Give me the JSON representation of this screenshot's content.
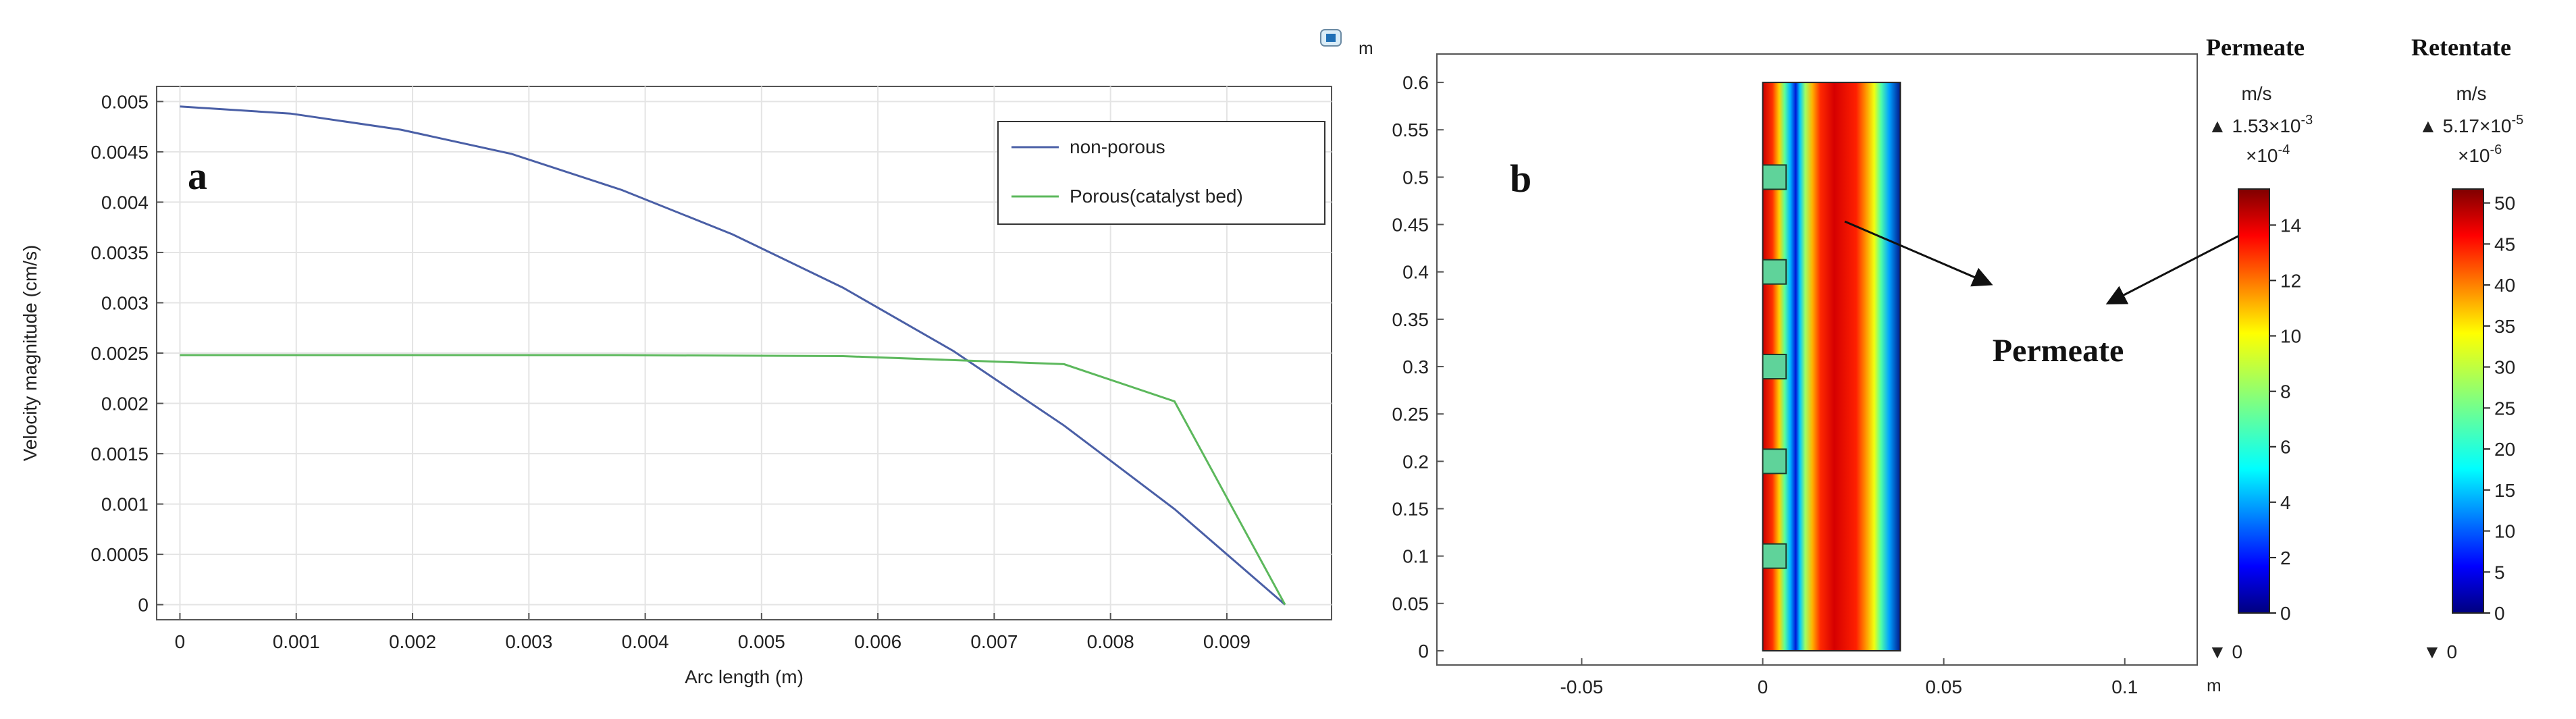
{
  "chart_data": [
    {
      "panel": "a",
      "type": "line",
      "panel_label": "a",
      "title": "",
      "xlabel": "Arc length (m)",
      "ylabel": "Velocity magnitude (cm/s)",
      "xlim": [
        -0.0002,
        0.0099
      ],
      "ylim": [
        -0.00015,
        0.00515
      ],
      "xticks": [
        "0",
        "0.001",
        "0.002",
        "0.003",
        "0.004",
        "0.005",
        "0.006",
        "0.007",
        "0.008",
        "0.009"
      ],
      "xtick_values": [
        0,
        0.001,
        0.002,
        0.003,
        0.004,
        0.005,
        0.006,
        0.007,
        0.008,
        0.009
      ],
      "yticks": [
        "0",
        "0.0005",
        "0.001",
        "0.0015",
        "0.002",
        "0.0025",
        "0.003",
        "0.0035",
        "0.004",
        "0.0045",
        "0.005"
      ],
      "ytick_values": [
        0,
        0.0005,
        0.001,
        0.0015,
        0.002,
        0.0025,
        0.003,
        0.0035,
        0.004,
        0.0045,
        0.005
      ],
      "grid": true,
      "legend": "top-right",
      "series": [
        {
          "name": "non-porous",
          "color": "#4a5fa6",
          "points": [
            [
              0,
              0.00495
            ],
            [
              0.00095,
              0.00488
            ],
            [
              0.0019,
              0.00472
            ],
            [
              0.00285,
              0.00448
            ],
            [
              0.0038,
              0.00412
            ],
            [
              0.00475,
              0.00368
            ],
            [
              0.0057,
              0.00315
            ],
            [
              0.00665,
              0.00252
            ],
            [
              0.0076,
              0.00178
            ],
            [
              0.00855,
              0.00095
            ],
            [
              0.0095,
              0.0
            ]
          ]
        },
        {
          "name": "Porous(catalyst bed)",
          "color": "#5cb85c",
          "points": [
            [
              0,
              0.00248
            ],
            [
              0.0038,
              0.00248
            ],
            [
              0.0057,
              0.00247
            ],
            [
              0.0076,
              0.00239
            ],
            [
              0.00855,
              0.00202
            ],
            [
              0.0095,
              0.0
            ]
          ]
        }
      ]
    },
    {
      "panel": "b",
      "type": "heatmap",
      "panel_label": "b",
      "title": "",
      "xlabel": "",
      "ylabel": "",
      "unit_label": "m",
      "xlim": [
        -0.09,
        0.12
      ],
      "ylim": [
        -0.015,
        0.63
      ],
      "xticks": [
        "-0.05",
        "0",
        "0.05",
        "0.1"
      ],
      "xtick_values": [
        -0.05,
        0,
        0.05,
        0.1
      ],
      "yticks": [
        "0",
        "0.05",
        "0.1",
        "0.15",
        "0.2",
        "0.25",
        "0.3",
        "0.35",
        "0.4",
        "0.45",
        "0.5",
        "0.55",
        "0.6"
      ],
      "ytick_values": [
        0,
        0.05,
        0.1,
        0.15,
        0.2,
        0.25,
        0.3,
        0.35,
        0.4,
        0.45,
        0.5,
        0.55,
        0.6
      ],
      "domain_x": [
        0,
        0.038
      ],
      "domain_y": [
        0,
        0.6
      ],
      "catalyst_block_centers_y": [
        0.1,
        0.2,
        0.3,
        0.4,
        0.5
      ],
      "annotation": "Permeate",
      "colorbars": [
        {
          "title": "Permeate",
          "unit": "m/s",
          "max_text": "▲ 1.53×10",
          "max_exp": "-3",
          "scale_text": "×10",
          "scale_exp": "-4",
          "min_text": "▼ 0",
          "range": [
            0,
            15.3
          ],
          "ticks": [
            "0",
            "2",
            "4",
            "6",
            "8",
            "10",
            "12",
            "14"
          ],
          "tick_values": [
            0,
            2,
            4,
            6,
            8,
            10,
            12,
            14
          ]
        },
        {
          "title": "Retentate",
          "unit": "m/s",
          "max_text": "▲ 5.17×10",
          "max_exp": "-5",
          "scale_text": "×10",
          "scale_exp": "-6",
          "min_text": "▼ 0",
          "range": [
            0,
            51.7
          ],
          "ticks": [
            "0",
            "5",
            "10",
            "15",
            "20",
            "25",
            "30",
            "35",
            "40",
            "45",
            "50"
          ],
          "tick_values": [
            0,
            5,
            10,
            15,
            20,
            25,
            30,
            35,
            40,
            45,
            50
          ]
        }
      ]
    }
  ]
}
